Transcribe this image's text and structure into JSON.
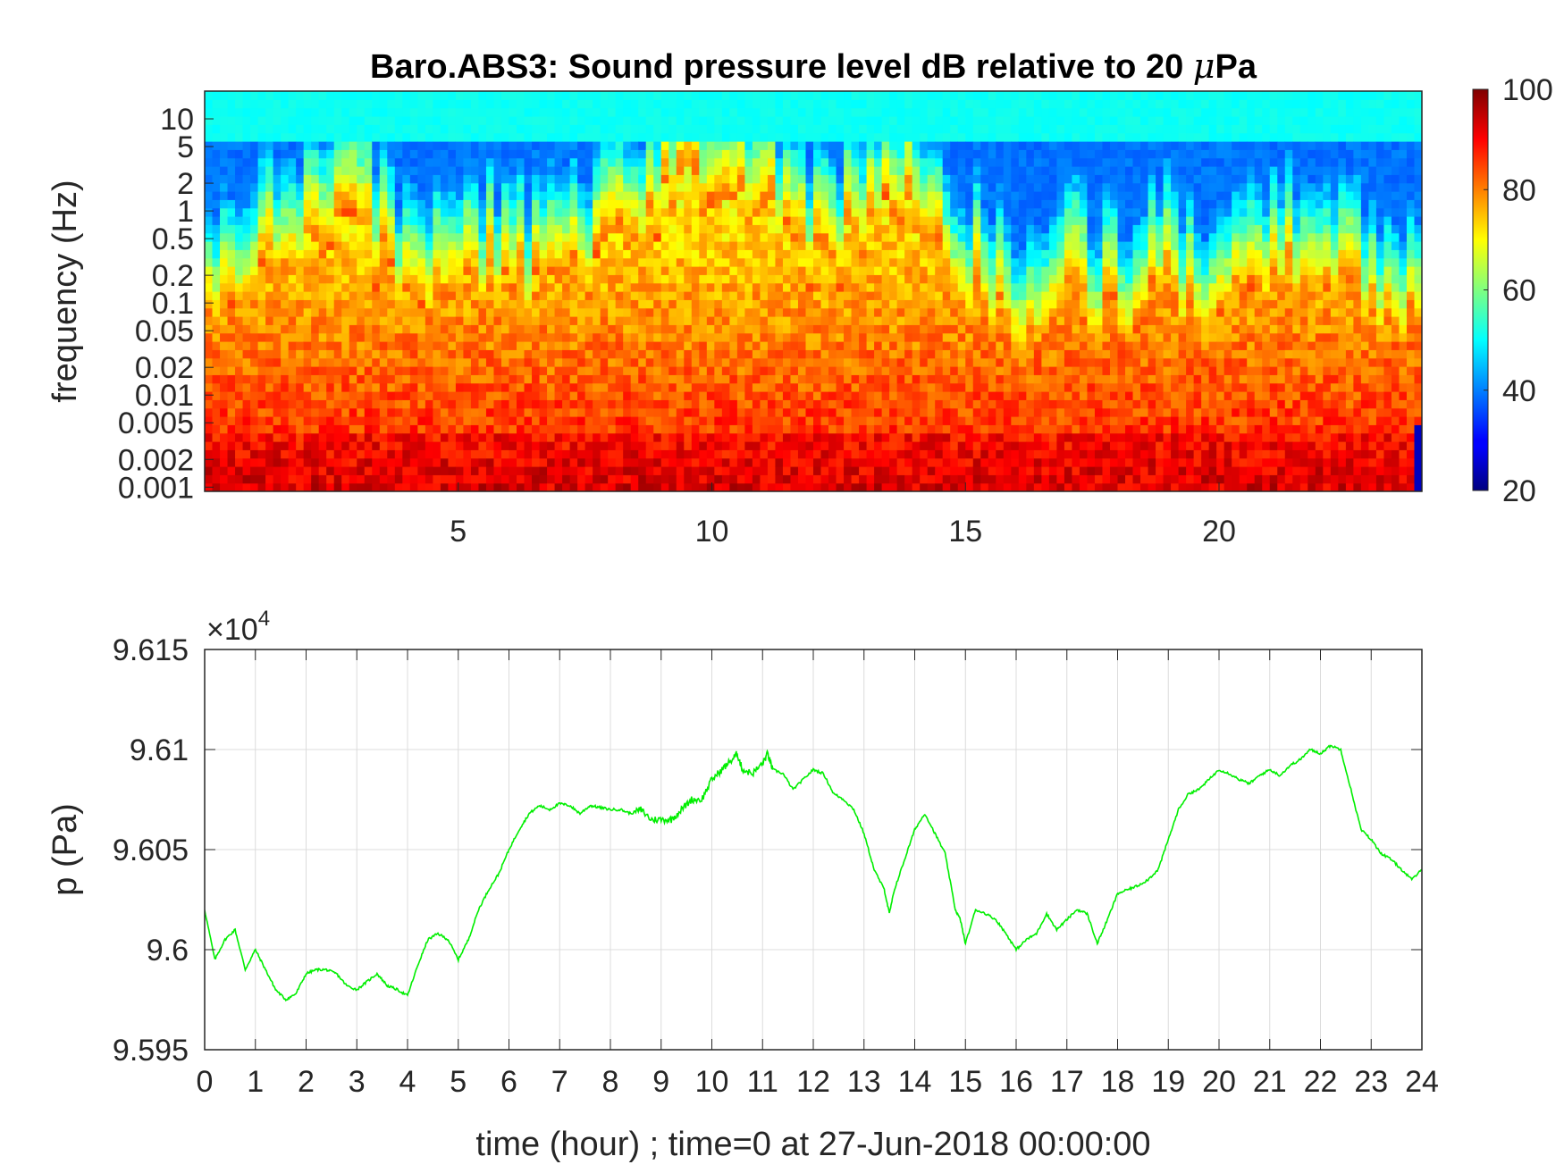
{
  "chart_data": [
    {
      "type": "heatmap",
      "title_prefix": "Baro.ABS3: Sound pressure level dB relative to 20 ",
      "title_mu": "μ",
      "title_suffix": "Pa",
      "xlabel": "",
      "ylabel": "frequency (Hz)",
      "x_range": [
        0,
        24
      ],
      "x_ticks": [
        "5",
        "10",
        "15",
        "20"
      ],
      "y_scale": "log",
      "y_range": [
        0.0009,
        20
      ],
      "y_ticks": [
        "0.001",
        "0.002",
        "0.005",
        "0.01",
        "0.02",
        "0.05",
        "0.1",
        "0.2",
        "0.5",
        "1",
        "2",
        "5",
        "10"
      ],
      "colorbar": {
        "colormap": "jet",
        "range": [
          20,
          100
        ],
        "ticks": [
          "20",
          "40",
          "60",
          "80",
          "100"
        ]
      },
      "intensity_profile": {
        "hours": [
          0,
          1,
          2,
          3,
          4,
          5,
          6,
          7,
          8,
          9,
          10,
          11,
          12,
          13,
          14,
          15,
          16,
          17,
          18,
          19,
          20,
          21,
          22,
          23,
          24
        ],
        "high_level_reach_hz": [
          0.05,
          0.2,
          0.3,
          0.5,
          0.1,
          0.2,
          0.1,
          0.1,
          0.3,
          1.0,
          2.0,
          1.0,
          0.2,
          0.5,
          1.0,
          0.1,
          0.05,
          0.1,
          0.05,
          0.1,
          0.05,
          0.1,
          0.2,
          0.05,
          0.05
        ]
      }
    },
    {
      "type": "line",
      "title": "",
      "xlabel": "time (hour) ; time=0 at 27-Jun-2018 00:00:00",
      "ylabel": "p (Pa)",
      "exponent_label_times": "×10",
      "exponent_label_power": "4",
      "xlim": [
        0,
        24
      ],
      "ylim": [
        95950,
        96150
      ],
      "x_ticks": [
        "0",
        "1",
        "2",
        "3",
        "4",
        "5",
        "6",
        "7",
        "8",
        "9",
        "10",
        "11",
        "12",
        "13",
        "14",
        "15",
        "16",
        "17",
        "18",
        "19",
        "20",
        "21",
        "22",
        "23",
        "24"
      ],
      "y_ticks": [
        "9.595",
        "9.6",
        "9.605",
        "9.61",
        "9.615"
      ],
      "grid": true,
      "series": [
        {
          "color": "#00ee00",
          "x": [
            0.0,
            0.2,
            0.4,
            0.6,
            0.8,
            1.0,
            1.2,
            1.4,
            1.6,
            1.8,
            2.0,
            2.2,
            2.4,
            2.6,
            2.8,
            3.0,
            3.2,
            3.4,
            3.6,
            3.8,
            4.0,
            4.2,
            4.4,
            4.6,
            4.8,
            5.0,
            5.2,
            5.4,
            5.6,
            5.8,
            6.0,
            6.2,
            6.4,
            6.6,
            6.8,
            7.0,
            7.2,
            7.4,
            7.6,
            7.8,
            8.0,
            8.2,
            8.4,
            8.6,
            8.8,
            9.0,
            9.2,
            9.4,
            9.6,
            9.8,
            10.0,
            10.2,
            10.4,
            10.5,
            10.6,
            10.8,
            11.0,
            11.1,
            11.2,
            11.4,
            11.6,
            11.8,
            12.0,
            12.2,
            12.4,
            12.6,
            12.8,
            13.0,
            13.2,
            13.4,
            13.5,
            13.6,
            13.8,
            14.0,
            14.2,
            14.4,
            14.6,
            14.8,
            14.9,
            15.0,
            15.2,
            15.4,
            15.6,
            15.8,
            16.0,
            16.2,
            16.4,
            16.6,
            16.8,
            17.0,
            17.2,
            17.4,
            17.6,
            17.8,
            18.0,
            18.2,
            18.4,
            18.6,
            18.8,
            19.0,
            19.2,
            19.4,
            19.6,
            19.8,
            20.0,
            20.2,
            20.4,
            20.6,
            20.8,
            21.0,
            21.2,
            21.4,
            21.6,
            21.8,
            22.0,
            22.2,
            22.4,
            22.6,
            22.8,
            23.0,
            23.2,
            23.4,
            23.6,
            23.8,
            24.0
          ],
          "y": [
            96020,
            95995,
            96005,
            96010,
            95990,
            96000,
            95990,
            95980,
            95975,
            95978,
            95988,
            95990,
            95990,
            95988,
            95982,
            95980,
            95984,
            95988,
            95982,
            95980,
            95977,
            95992,
            96005,
            96008,
            96005,
            95995,
            96005,
            96020,
            96030,
            96038,
            96050,
            96060,
            96068,
            96072,
            96070,
            96073,
            96072,
            96068,
            96072,
            96071,
            96070,
            96070,
            96068,
            96070,
            96065,
            96065,
            96065,
            96070,
            96075,
            96075,
            96085,
            96090,
            96095,
            96098,
            96090,
            96088,
            96093,
            96098,
            96090,
            96088,
            96080,
            96085,
            96090,
            96088,
            96078,
            96075,
            96070,
            96058,
            96040,
            96030,
            96018,
            96030,
            96045,
            96060,
            96068,
            96058,
            96048,
            96020,
            96015,
            96003,
            96020,
            96018,
            96015,
            96008,
            96000,
            96005,
            96008,
            96018,
            96010,
            96015,
            96020,
            96018,
            96003,
            96015,
            96028,
            96030,
            96032,
            96035,
            96040,
            96055,
            96070,
            96078,
            96080,
            96085,
            96090,
            96088,
            96085,
            96083,
            96087,
            96090,
            96087,
            96092,
            96095,
            96100,
            96098,
            96102,
            96100,
            96080,
            96060,
            96055,
            96048,
            96045,
            96040,
            96035,
            96040
          ]
        }
      ]
    }
  ]
}
